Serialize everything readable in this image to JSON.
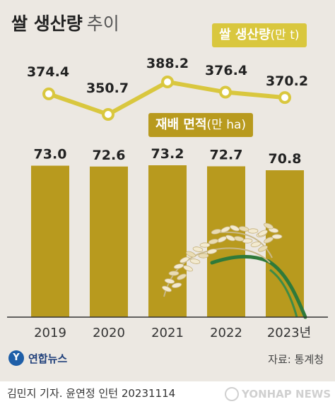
{
  "title": {
    "main": "쌀 생산량",
    "sub": "추이"
  },
  "production_label": {
    "name": "쌀 생산량",
    "unit": "(만 t)"
  },
  "area_label": {
    "name": "재배 면적",
    "unit": "(만 ha)"
  },
  "source": "자료: 통계청",
  "logo": "연합뉴스",
  "footer": "김민지 기자. 윤연정 인턴  20231114",
  "watermark": "YONHAP NEWS",
  "colors": {
    "background": "#ece8e2",
    "bar": "#b89a1e",
    "line": "#d9c73e",
    "production_badge": "#d9c73e",
    "area_badge": "#b89a1e",
    "logo": "#1f5fa8"
  },
  "chart_data": [
    {
      "type": "bar",
      "categories": [
        "2019",
        "2020",
        "2021",
        "2022",
        "2023년"
      ],
      "series": [
        {
          "name": "재배 면적(만 ha)",
          "values": [
            73.0,
            72.6,
            73.2,
            72.7,
            70.8
          ]
        }
      ],
      "title": "쌀 생산량 추이"
    },
    {
      "type": "line",
      "categories": [
        "2019",
        "2020",
        "2021",
        "2022",
        "2023년"
      ],
      "series": [
        {
          "name": "쌀 생산량(만 t)",
          "values": [
            374.4,
            350.7,
            388.2,
            376.4,
            370.2
          ]
        }
      ]
    }
  ]
}
